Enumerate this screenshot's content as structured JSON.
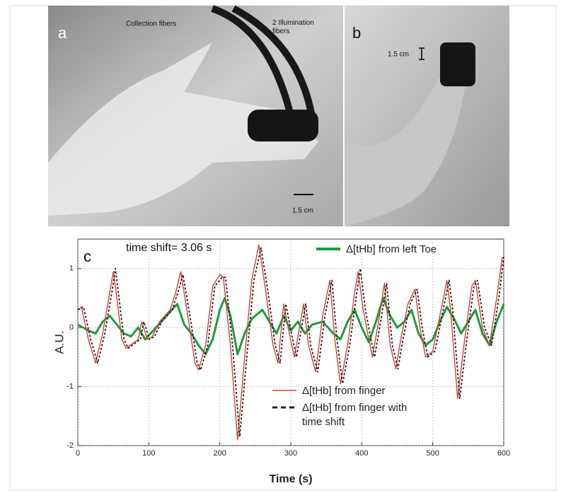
{
  "panels": {
    "a": {
      "label": "a",
      "collection": "Collection fibers",
      "illumination": "2 Illumination fibers",
      "scale": "1.5 cm"
    },
    "b": {
      "label": "b",
      "scale": "1.5 cm"
    }
  },
  "chart_data": {
    "type": "line",
    "panel_label": "c",
    "annotation": "time shift= 3.06 s",
    "xlabel": "Time (s)",
    "ylabel": "A.U.",
    "xlim": [
      0,
      600
    ],
    "xticks": [
      0,
      100,
      200,
      300,
      400,
      500,
      600
    ],
    "ylim": [
      -2,
      1.5
    ],
    "yticks": [
      -2,
      -1,
      0,
      1
    ],
    "grid": true,
    "series": [
      {
        "name": "Δ[tHb] from left Toe",
        "color": "#1e9b3c",
        "line_style": "solid",
        "x": [
          0,
          15,
          25,
          35,
          45,
          55,
          65,
          75,
          85,
          95,
          110,
          125,
          140,
          150,
          160,
          170,
          180,
          190,
          200,
          207,
          215,
          225,
          235,
          245,
          260,
          270,
          280,
          290,
          300,
          310,
          320,
          330,
          345,
          360,
          370,
          380,
          390,
          400,
          410,
          420,
          430,
          440,
          450,
          460,
          470,
          480,
          490,
          500,
          510,
          520,
          530,
          540,
          550,
          560,
          570,
          580,
          590,
          600
        ],
        "values": [
          0.05,
          -0.05,
          -0.1,
          0.1,
          0.2,
          0.05,
          -0.1,
          -0.15,
          0,
          -0.2,
          0,
          0.2,
          0.4,
          0.05,
          -0.1,
          -0.3,
          -0.45,
          -0.2,
          0.3,
          0.5,
          0.2,
          -0.45,
          -0.1,
          0.15,
          0.3,
          0.1,
          -0.1,
          0.2,
          -0.05,
          0.1,
          -0.1,
          0.05,
          0.1,
          -0.1,
          -0.2,
          0.1,
          0.3,
          0,
          -0.25,
          0.1,
          0.5,
          0.2,
          0,
          0.1,
          0.3,
          -0.1,
          -0.3,
          -0.2,
          0.1,
          0.35,
          0.15,
          -0.1,
          0.1,
          0.3,
          -0.1,
          -0.3,
          0.1,
          0.4
        ]
      },
      {
        "name": "Δ[tHb] from finger",
        "color": "#d9403a",
        "line_style": "solid",
        "x": [
          0,
          5,
          15,
          25,
          35,
          45,
          50,
          55,
          62,
          68,
          85,
          90,
          98,
          105,
          115,
          130,
          138,
          145,
          155,
          165,
          170,
          180,
          190,
          200,
          205,
          215,
          225,
          235,
          245,
          255,
          265,
          275,
          282,
          290,
          298,
          305,
          318,
          325,
          335,
          345,
          355,
          362,
          370,
          380,
          390,
          395,
          402,
          410,
          415,
          425,
          432,
          440,
          448,
          455,
          465,
          475,
          482,
          490,
          500,
          510,
          520,
          525,
          535,
          545,
          555,
          560,
          570,
          580,
          590,
          598
        ],
        "values": [
          0.3,
          0.35,
          -0.2,
          -0.6,
          -0.1,
          0.6,
          0.95,
          0.5,
          -0.2,
          -0.35,
          -0.2,
          0.1,
          -0.2,
          -0.15,
          0.1,
          0.3,
          0.6,
          0.95,
          0.2,
          -0.6,
          -0.72,
          -0.3,
          0.7,
          0.9,
          0.85,
          -0.3,
          -1.9,
          -0.5,
          0.8,
          1.4,
          0.6,
          -0.3,
          -0.6,
          0.4,
          -0.1,
          -0.5,
          0.4,
          -0.3,
          -0.75,
          0.2,
          0.8,
          -0.2,
          -0.95,
          -0.3,
          0.6,
          0.95,
          0.3,
          -0.2,
          -0.5,
          0.2,
          0.75,
          -0.3,
          -0.7,
          -0.2,
          0.4,
          0.65,
          0,
          -0.5,
          -0.4,
          0.2,
          0.8,
          0.3,
          -1.2,
          -0.2,
          0.7,
          0.8,
          0,
          -0.3,
          0.5,
          1.2
        ]
      },
      {
        "name": "Δ[tHb] from finger with time shift",
        "color": "#222222",
        "line_style": "dashed",
        "x": [
          0,
          8,
          18,
          28,
          38,
          48,
          53,
          58,
          65,
          71,
          88,
          93,
          101,
          108,
          118,
          133,
          141,
          148,
          158,
          168,
          173,
          183,
          193,
          203,
          208,
          218,
          228,
          238,
          248,
          258,
          268,
          278,
          285,
          293,
          301,
          308,
          321,
          328,
          338,
          348,
          358,
          365,
          373,
          383,
          393,
          398,
          405,
          413,
          418,
          428,
          435,
          443,
          451,
          458,
          468,
          478,
          485,
          493,
          503,
          513,
          523,
          528,
          538,
          548,
          558,
          563,
          573,
          583,
          593,
          600
        ],
        "values": [
          0.3,
          0.35,
          -0.2,
          -0.6,
          -0.1,
          0.6,
          1.0,
          0.5,
          -0.2,
          -0.35,
          -0.2,
          0.1,
          -0.2,
          -0.15,
          0.1,
          0.3,
          0.6,
          0.9,
          0.2,
          -0.6,
          -0.72,
          -0.3,
          0.7,
          0.85,
          0.85,
          -0.3,
          -1.85,
          -0.5,
          0.8,
          1.35,
          0.6,
          -0.3,
          -0.6,
          0.4,
          -0.1,
          -0.5,
          0.4,
          -0.3,
          -0.75,
          0.2,
          0.8,
          -0.2,
          -0.95,
          -0.3,
          0.6,
          1.0,
          0.3,
          -0.2,
          -0.5,
          0.2,
          0.75,
          -0.3,
          -0.7,
          -0.2,
          0.4,
          0.65,
          0,
          -0.5,
          -0.4,
          0.2,
          0.8,
          0.3,
          -1.2,
          -0.2,
          0.7,
          0.8,
          0,
          -0.3,
          0.5,
          1.2
        ]
      }
    ]
  }
}
